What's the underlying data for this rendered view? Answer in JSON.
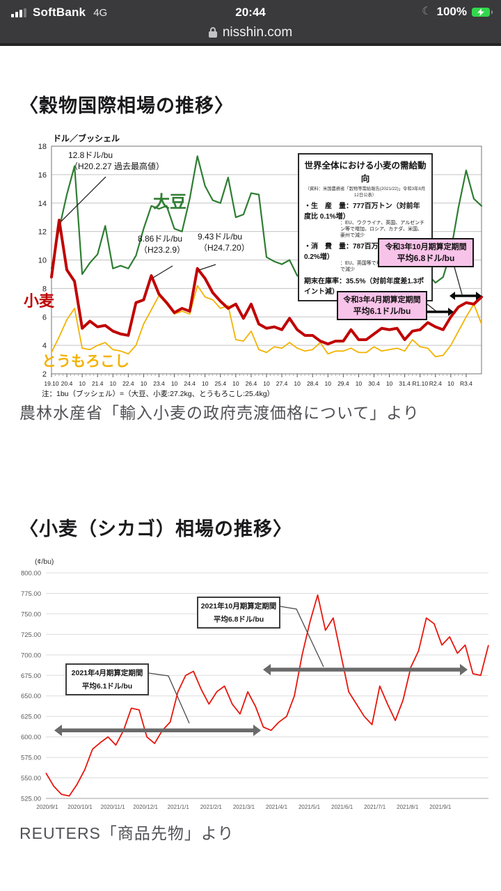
{
  "status_bar": {
    "carrier": "SoftBank",
    "network": "4G",
    "time": "20:44",
    "battery_percent": "100%"
  },
  "url_bar": {
    "domain": "nisshin.com"
  },
  "section1": {
    "title": "〈穀物国際相場の推移〉",
    "caption": "農林水産省「輸入小麦の政府売渡価格について」より"
  },
  "section2": {
    "title": "〈小麦（シカゴ）相場の推移〉",
    "caption": "REUTERS「商品先物」より"
  },
  "chart_data": [
    {
      "type": "line",
      "title": "穀物国際相場の推移",
      "ylabel": "ドル／ブッシェル",
      "ylim": [
        2,
        18
      ],
      "ytick_step": 2,
      "x_tick_labels": [
        "19.10",
        "20.4",
        "10",
        "21.4",
        "10",
        "22.4",
        "10",
        "23.4",
        "10",
        "24.4",
        "10",
        "25.4",
        "10",
        "26.4",
        "10",
        "27.4",
        "10",
        "28.4",
        "10",
        "29.4",
        "10",
        "30.4",
        "10",
        "31.4",
        "R1.10",
        "R2.4",
        "10",
        "R3.4"
      ],
      "x_note": "注：1bu（ブッシェル）=（大豆、小麦:27.2kg、とうもろこし:25.4kg）",
      "series": [
        {
          "name": "大豆",
          "color": "#2e7d32",
          "width": 2.2,
          "values": [
            9.4,
            12.2,
            14.6,
            16.6,
            9.0,
            9.8,
            10.4,
            12.4,
            9.4,
            9.6,
            9.4,
            10.3,
            12.2,
            13.8,
            13.6,
            13.8,
            12.2,
            12.0,
            14.3,
            17.3,
            15.2,
            14.2,
            14.0,
            15.8,
            13.0,
            13.2,
            14.7,
            14.6,
            10.2,
            9.9,
            9.7,
            10.0,
            8.9,
            8.8,
            9.6,
            11.6,
            9.9,
            10.4,
            9.6,
            10.0,
            9.9,
            9.9,
            10.4,
            8.6,
            8.7,
            9.1,
            8.9,
            9.0,
            9.3,
            9.0,
            8.4,
            8.8,
            10.6,
            13.7,
            16.3,
            14.3,
            13.8
          ]
        },
        {
          "name": "小麦",
          "color": "#c00000",
          "width": 4,
          "values": [
            8.8,
            12.8,
            9.3,
            8.5,
            5.2,
            5.7,
            5.3,
            5.4,
            5.0,
            4.8,
            4.7,
            7.0,
            7.2,
            8.9,
            7.6,
            7.0,
            6.3,
            6.6,
            6.4,
            9.4,
            8.7,
            7.7,
            7.1,
            6.6,
            6.9,
            5.9,
            6.9,
            5.5,
            5.2,
            5.3,
            5.1,
            5.9,
            5.1,
            4.7,
            4.7,
            4.3,
            4.1,
            4.3,
            4.3,
            5.1,
            4.4,
            4.4,
            4.8,
            5.2,
            5.1,
            5.2,
            4.4,
            5.0,
            5.1,
            5.6,
            5.3,
            5.1,
            6.0,
            6.7,
            7.0,
            6.9,
            7.4
          ]
        },
        {
          "name": "とうもろこし",
          "color": "#f3b200",
          "width": 1.8,
          "values": [
            3.5,
            4.6,
            5.8,
            6.6,
            3.8,
            3.7,
            4.0,
            4.2,
            3.7,
            3.6,
            3.4,
            4.0,
            5.5,
            6.5,
            7.5,
            6.9,
            6.2,
            6.4,
            6.2,
            8.2,
            7.4,
            7.2,
            6.6,
            6.8,
            4.4,
            4.3,
            5.0,
            3.7,
            3.5,
            3.9,
            3.8,
            4.2,
            3.8,
            3.6,
            3.7,
            4.2,
            3.4,
            3.6,
            3.6,
            3.8,
            3.5,
            3.5,
            3.9,
            3.6,
            3.7,
            3.8,
            3.6,
            4.4,
            3.9,
            3.8,
            3.2,
            3.3,
            4.0,
            5.0,
            6.0,
            6.9,
            5.5
          ]
        }
      ],
      "annotations": [
        {
          "line1": "12.8ドル/bu",
          "line2": "（H20.2.27 過去最高値）"
        },
        {
          "line1": "8.86ドル/bu",
          "line2": "（H23.2.9）"
        },
        {
          "line1": "9.43ドル/bu",
          "line2": "（H24.7.20）"
        }
      ],
      "info_box": {
        "title": "世界全体における小麦の需給動向",
        "source": "（資料：米国農務省「穀物等需給報告(2021/22)」令和3年8月12日公表）",
        "line_production": "・生　産　量：777百万トン（対前年度比 0.1%増）",
        "line_production_detail": "：EU、ウクライナ、英国、アルゼンチン等で増加、ロシア、カナダ、米国、豪州で減少",
        "line_consumption": "・消　費　量：787百万トン（　〃　 0.2%増）",
        "line_consumption_detail": "：EU、英国等で増加、ロシア、中国等で減少",
        "line_stock": "期末在庫率：35.5%（対前年度差1.3ポイント減）"
      },
      "period_boxes": [
        {
          "line1": "令和3年10月期算定期間",
          "line2": "平均6.8ドル/bu"
        },
        {
          "line1": "令和3年4月期算定期間",
          "line2": "平均6.1ドル/bu"
        }
      ]
    },
    {
      "type": "line",
      "title": "小麦（シカゴ）相場の推移",
      "ylabel": "(¢/bu)",
      "ylim": [
        525,
        800
      ],
      "ytick_step": 25,
      "x_tick_labels": [
        "2020/9/1",
        "2020/10/1",
        "2020/11/1",
        "2020/12/1",
        "2021/1/1",
        "2021/2/1",
        "2021/3/1",
        "2021/4/1",
        "2021/5/1",
        "2021/6/1",
        "2021/7/1",
        "2021/8/1",
        "2021/9/1"
      ],
      "series": [
        {
          "name": "小麦（シカゴ）",
          "color": "#e8150c",
          "width": 1.8,
          "values": [
            556,
            540,
            530,
            528,
            542,
            560,
            585,
            593,
            600,
            590,
            608,
            635,
            633,
            600,
            592,
            608,
            618,
            655,
            675,
            680,
            658,
            640,
            655,
            662,
            640,
            628,
            655,
            637,
            612,
            608,
            618,
            625,
            650,
            700,
            740,
            773,
            730,
            745,
            700,
            655,
            640,
            625,
            615,
            662,
            640,
            620,
            645,
            685,
            705,
            745,
            738,
            712,
            722,
            702,
            712,
            677,
            675,
            712
          ]
        }
      ],
      "period_boxes": [
        {
          "line1": "2021年10月期算定期間",
          "line2": "平均6.8ドル/bu"
        },
        {
          "line1": "2021年4月期算定期間",
          "line2": "平均6.1ドル/bu"
        }
      ],
      "range_arrows": [
        {
          "period": "2021年4月期算定期間",
          "y_value": 608,
          "from": "2020/9/1",
          "to": "2021/3/10"
        },
        {
          "period": "2021年10月期算定期間",
          "y_value": 682,
          "from": "2021/3/10",
          "to": "2021/9/24"
        }
      ]
    }
  ]
}
